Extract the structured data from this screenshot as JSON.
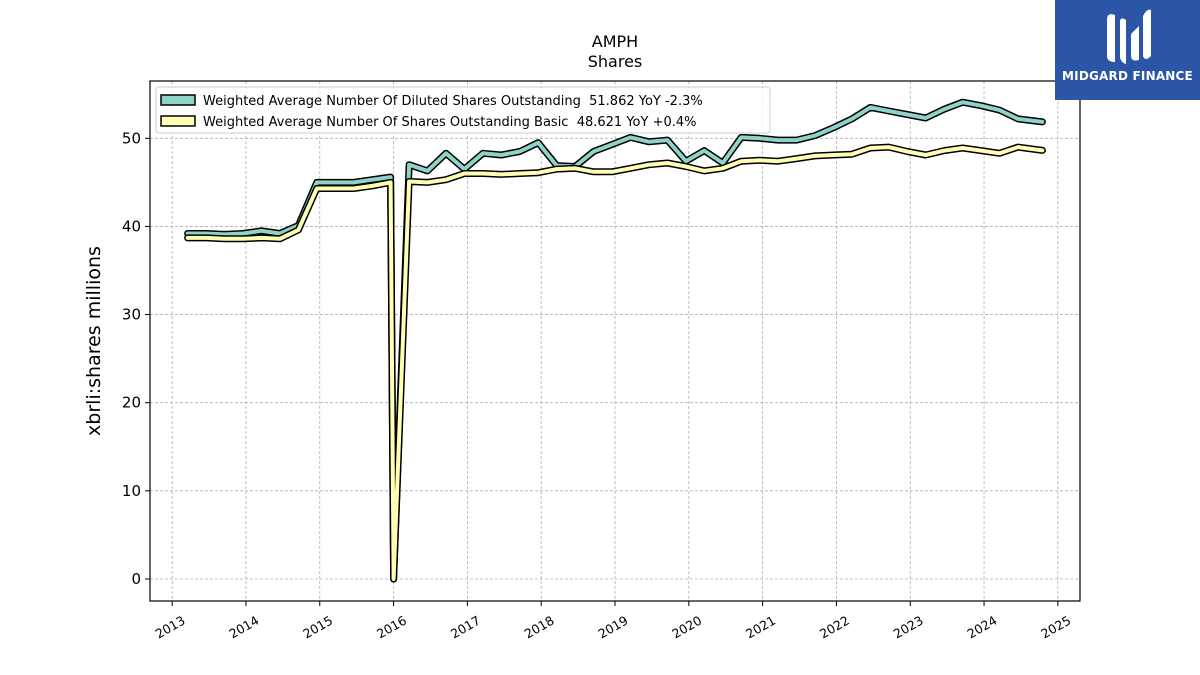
{
  "logo": {
    "text": "MIDGARD FINANCE",
    "background": "#2b56a8"
  },
  "chart_data": {
    "type": "line",
    "title": "AMPH",
    "subtitle": "Shares",
    "ylabel": "xbrli:shares millions",
    "xlabel": "",
    "xlim": [
      2012.7,
      2025.3
    ],
    "ylim": [
      -2.5,
      56.5
    ],
    "x_ticks": [
      "2013",
      "2014",
      "2015",
      "2016",
      "2017",
      "2018",
      "2019",
      "2020",
      "2021",
      "2022",
      "2023",
      "2024",
      "2025"
    ],
    "y_ticks": [
      "0",
      "10",
      "20",
      "30",
      "40",
      "50"
    ],
    "grid": true,
    "legend_position": "top-left",
    "series": [
      {
        "name": "Weighted Average Number Of Diluted Shares Outstanding  51.862 YoY -2.3%",
        "color": "#8dd3c7",
        "points": [
          [
            2013.21,
            39.2
          ],
          [
            2013.46,
            39.2
          ],
          [
            2013.71,
            39.1
          ],
          [
            2013.96,
            39.2
          ],
          [
            2014.21,
            39.5
          ],
          [
            2014.46,
            39.2
          ],
          [
            2014.71,
            40.1
          ],
          [
            2014.96,
            45.0
          ],
          [
            2015.21,
            45.0
          ],
          [
            2015.46,
            45.0
          ],
          [
            2015.71,
            45.3
          ],
          [
            2015.96,
            45.6
          ],
          [
            2016.0,
            0.0
          ],
          [
            2016.21,
            47.0
          ],
          [
            2016.46,
            46.3
          ],
          [
            2016.71,
            48.3
          ],
          [
            2016.96,
            46.5
          ],
          [
            2017.21,
            48.3
          ],
          [
            2017.46,
            48.1
          ],
          [
            2017.71,
            48.5
          ],
          [
            2017.96,
            49.5
          ],
          [
            2018.21,
            46.9
          ],
          [
            2018.46,
            46.8
          ],
          [
            2018.71,
            48.5
          ],
          [
            2018.96,
            49.3
          ],
          [
            2019.21,
            50.1
          ],
          [
            2019.46,
            49.6
          ],
          [
            2019.71,
            49.8
          ],
          [
            2019.96,
            47.4
          ],
          [
            2020.21,
            48.6
          ],
          [
            2020.46,
            47.2
          ],
          [
            2020.71,
            50.1
          ],
          [
            2020.96,
            50.0
          ],
          [
            2021.21,
            49.8
          ],
          [
            2021.46,
            49.8
          ],
          [
            2021.71,
            50.3
          ],
          [
            2021.96,
            51.2
          ],
          [
            2022.21,
            52.2
          ],
          [
            2022.46,
            53.5
          ],
          [
            2022.71,
            53.1
          ],
          [
            2022.96,
            52.7
          ],
          [
            2023.21,
            52.3
          ],
          [
            2023.46,
            53.3
          ],
          [
            2023.71,
            54.1
          ],
          [
            2023.96,
            53.7
          ],
          [
            2024.21,
            53.2
          ],
          [
            2024.46,
            52.2
          ],
          [
            2024.79,
            51.862
          ]
        ]
      },
      {
        "name": "Weighted Average Number Of Shares Outstanding Basic  48.621 YoY +0.4%",
        "color": "#ffffb3",
        "points": [
          [
            2013.21,
            38.7
          ],
          [
            2013.46,
            38.7
          ],
          [
            2013.71,
            38.6
          ],
          [
            2013.96,
            38.6
          ],
          [
            2014.21,
            38.7
          ],
          [
            2014.46,
            38.6
          ],
          [
            2014.71,
            39.6
          ],
          [
            2014.96,
            44.3
          ],
          [
            2015.21,
            44.3
          ],
          [
            2015.46,
            44.3
          ],
          [
            2015.71,
            44.6
          ],
          [
            2015.96,
            45.0
          ],
          [
            2016.0,
            0.0
          ],
          [
            2016.21,
            45.1
          ],
          [
            2016.46,
            45.0
          ],
          [
            2016.71,
            45.3
          ],
          [
            2016.96,
            46.0
          ],
          [
            2017.21,
            46.0
          ],
          [
            2017.46,
            45.9
          ],
          [
            2017.71,
            46.0
          ],
          [
            2017.96,
            46.1
          ],
          [
            2018.21,
            46.5
          ],
          [
            2018.46,
            46.6
          ],
          [
            2018.71,
            46.2
          ],
          [
            2018.96,
            46.2
          ],
          [
            2019.21,
            46.6
          ],
          [
            2019.46,
            47.0
          ],
          [
            2019.71,
            47.2
          ],
          [
            2019.96,
            46.8
          ],
          [
            2020.21,
            46.3
          ],
          [
            2020.46,
            46.6
          ],
          [
            2020.71,
            47.4
          ],
          [
            2020.96,
            47.5
          ],
          [
            2021.21,
            47.4
          ],
          [
            2021.46,
            47.7
          ],
          [
            2021.71,
            48.0
          ],
          [
            2021.96,
            48.1
          ],
          [
            2022.21,
            48.2
          ],
          [
            2022.46,
            48.9
          ],
          [
            2022.71,
            49.0
          ],
          [
            2022.96,
            48.5
          ],
          [
            2023.21,
            48.1
          ],
          [
            2023.46,
            48.6
          ],
          [
            2023.71,
            48.9
          ],
          [
            2023.96,
            48.6
          ],
          [
            2024.21,
            48.3
          ],
          [
            2024.46,
            49.0
          ],
          [
            2024.79,
            48.621
          ]
        ]
      }
    ]
  }
}
